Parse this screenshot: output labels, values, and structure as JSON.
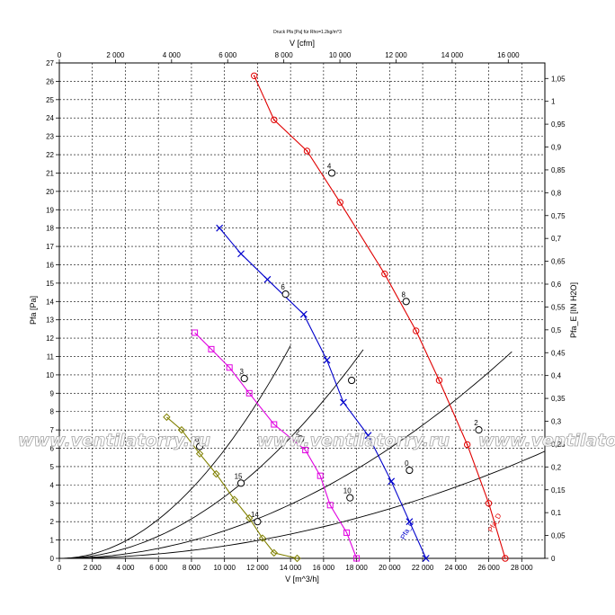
{
  "chart_data": {
    "type": "line",
    "title": "Druck Pfa [Pa] für Rho=1.2kg/m^3",
    "xlabel": "V [m^3/h]",
    "xlabel_top": "V [cfm]",
    "ylabel": "Pfa [Pa]",
    "ylabel_right": "Pfa_E [IN H2O]",
    "xlim": [
      0,
      29400
    ],
    "ylim": [
      0,
      270
    ],
    "x_ticks": [
      0,
      2000,
      4000,
      6000,
      8000,
      10000,
      12000,
      14000,
      16000,
      18000,
      20000,
      22000,
      24000,
      26000,
      28000
    ],
    "x_tick_labels": [
      "0",
      "2 000",
      "4 000",
      "6 000",
      "8 000",
      "10 000",
      "12 000",
      "14 000",
      "16 000",
      "18 000",
      "20 000",
      "22 000",
      "24 000",
      "26 000",
      "28 000"
    ],
    "y_ticks": [
      0,
      10,
      20,
      30,
      40,
      50,
      60,
      70,
      80,
      90,
      100,
      110,
      120,
      130,
      140,
      150,
      160,
      170,
      180,
      190,
      200,
      210,
      220,
      230,
      240,
      250,
      260,
      270
    ],
    "y_tick_labels": [
      "0",
      "1",
      "2",
      "3",
      "4",
      "5",
      "6",
      "7",
      "8",
      "9",
      "10",
      "11",
      "12",
      "13",
      "14",
      "15",
      "16",
      "17",
      "18",
      "19",
      "20",
      "21",
      "22",
      "23",
      "24",
      "25",
      "26",
      "27"
    ],
    "top_ticks_cfm": [
      0,
      2000,
      4000,
      6000,
      8000,
      10000,
      12000,
      14000,
      16000
    ],
    "top_tick_labels": [
      "0",
      "2 000",
      "4 000",
      "6 000",
      "8 000",
      "10 000",
      "12 000",
      "14 000",
      "16 000"
    ],
    "right_ticks_inh2o": [
      0,
      0.05,
      0.1,
      0.15,
      0.2,
      0.25,
      0.3,
      0.35,
      0.4,
      0.45,
      0.5,
      0.55,
      0.6,
      0.65,
      0.7,
      0.75,
      0.8,
      0.85,
      0.9,
      0.95,
      1.0,
      1.05
    ],
    "right_tick_labels": [
      "0",
      "0,05",
      "0,1",
      "0,15",
      "0,2",
      "0,25",
      "0,3",
      "0,35",
      "0,4",
      "0,45",
      "0,5",
      "0,55",
      "0,6",
      "0,65",
      "0,7",
      "0,75",
      "0,8",
      "0,85",
      "0,9",
      "0,95",
      "1",
      "1,05"
    ],
    "grid": true,
    "series": [
      {
        "name": "Pfa_D",
        "color": "#e00000",
        "marker": "circle-dot",
        "points": [
          [
            11800,
            263
          ],
          [
            13000,
            239
          ],
          [
            15000,
            222
          ],
          [
            17000,
            194
          ],
          [
            19700,
            155
          ],
          [
            21600,
            124
          ],
          [
            23000,
            97
          ],
          [
            24700,
            62
          ],
          [
            26000,
            30
          ],
          [
            27000,
            0
          ]
        ],
        "label_x": 26200,
        "label_y": 14
      },
      {
        "name": "Pfa_C",
        "color": "#0000cc",
        "marker": "x",
        "points": [
          [
            9700,
            180
          ],
          [
            11000,
            166
          ],
          [
            12600,
            152
          ],
          [
            14800,
            133
          ],
          [
            16200,
            108
          ],
          [
            17200,
            85
          ],
          [
            18700,
            67
          ],
          [
            20100,
            42
          ],
          [
            21200,
            20
          ],
          [
            22200,
            0
          ]
        ],
        "label_x": 20900,
        "label_y": 10
      },
      {
        "name": "",
        "color": "#e000e0",
        "marker": "square",
        "points": [
          [
            8200,
            123
          ],
          [
            9200,
            114
          ],
          [
            10300,
            104
          ],
          [
            11500,
            90
          ],
          [
            13000,
            73
          ],
          [
            14900,
            59
          ],
          [
            15800,
            45
          ],
          [
            16400,
            29
          ],
          [
            17400,
            14
          ],
          [
            18000,
            0
          ]
        ],
        "label_x": 17600,
        "label_y": 6
      },
      {
        "name": "",
        "color": "#808000",
        "marker": "diamond",
        "points": [
          [
            6500,
            77
          ],
          [
            7400,
            70
          ],
          [
            8500,
            57
          ],
          [
            9500,
            46
          ],
          [
            10600,
            32
          ],
          [
            11500,
            22
          ],
          [
            12300,
            11
          ],
          [
            13000,
            3
          ],
          [
            14400,
            0
          ]
        ],
        "label_x": 13600,
        "label_y": 4
      }
    ],
    "system_curves": [
      {
        "name": "A",
        "k": 5.916e-07,
        "x_end": 14000
      },
      {
        "name": "B",
        "k": 3.36e-07,
        "x_end": 18400
      },
      {
        "name": "C",
        "k": 1.5e-07,
        "x_end": 27400
      },
      {
        "name": "D",
        "k": 6.75e-08,
        "x_end": 29400
      }
    ],
    "operating_points": [
      {
        "x": 16500,
        "y": 210,
        "label": "4"
      },
      {
        "x": 21000,
        "y": 140,
        "label": "8"
      },
      {
        "x": 25400,
        "y": 70,
        "label": "2"
      },
      {
        "x": 13700,
        "y": 144,
        "label": "6"
      },
      {
        "x": 17700,
        "y": 97,
        "label": ""
      },
      {
        "x": 21200,
        "y": 48,
        "label": "0"
      },
      {
        "x": 11200,
        "y": 98,
        "label": "3"
      },
      {
        "x": 14600,
        "y": 65,
        "label": "2"
      },
      {
        "x": 17600,
        "y": 33,
        "label": "10"
      },
      {
        "x": 8500,
        "y": 61,
        "label": "6"
      },
      {
        "x": 11000,
        "y": 41,
        "label": "15"
      },
      {
        "x": 12000,
        "y": 20,
        "label": "14"
      }
    ]
  },
  "watermark": "www.ventilatorry.ru"
}
